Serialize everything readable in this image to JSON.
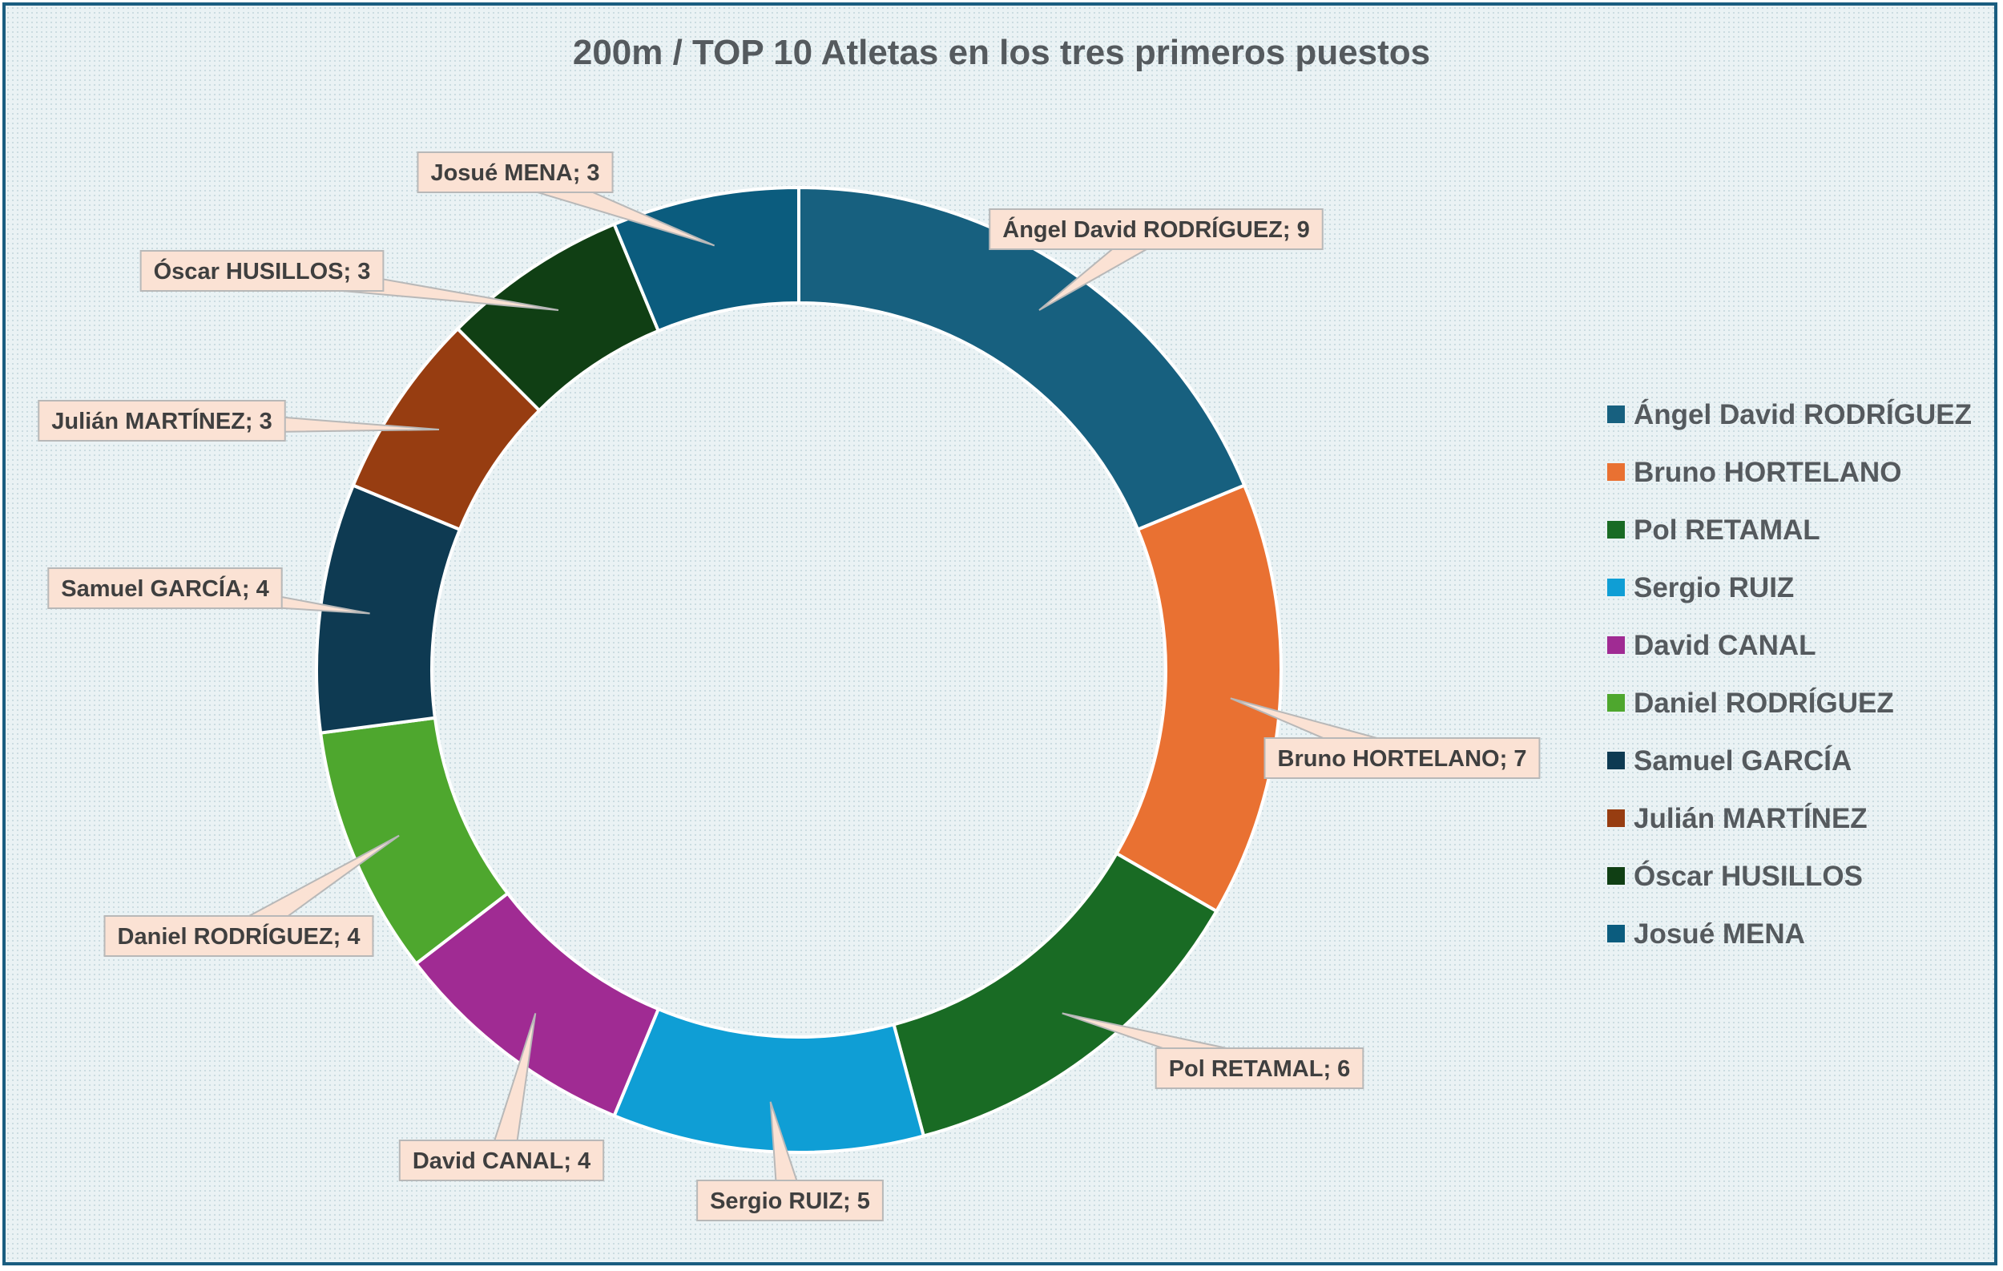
{
  "chart_data": {
    "type": "pie",
    "variant": "doughnut",
    "title": "200m / TOP 10 Atletas en los tres primeros puestos",
    "categories": [
      "Ángel David RODRÍGUEZ",
      "Bruno HORTELANO",
      "Pol RETAMAL",
      "Sergio RUIZ",
      "David CANAL",
      "Daniel RODRÍGUEZ",
      "Samuel GARCÍA",
      "Julián MARTÍNEZ",
      "Óscar HUSILLOS",
      "Josué MENA"
    ],
    "values": [
      9,
      7,
      6,
      5,
      4,
      4,
      4,
      3,
      3,
      3
    ],
    "data_labels": [
      "Ángel David RODRÍGUEZ; 9",
      "Bruno HORTELANO; 7",
      "Pol RETAMAL; 6",
      "Sergio RUIZ; 5",
      "David CANAL; 4",
      "Daniel RODRÍGUEZ; 4",
      "Samuel GARCÍA; 4",
      "Julián MARTÍNEZ; 3",
      "Óscar HUSILLOS; 3",
      "Josué MENA; 3"
    ],
    "colors": [
      "#17607f",
      "#e97132",
      "#196b24",
      "#0f9ed5",
      "#a02b93",
      "#4ea72e",
      "#0e3a52",
      "#973d11",
      "#103f14",
      "#0b5c7e"
    ],
    "legend_position": "right",
    "label_fill": "#fbe2d4"
  }
}
